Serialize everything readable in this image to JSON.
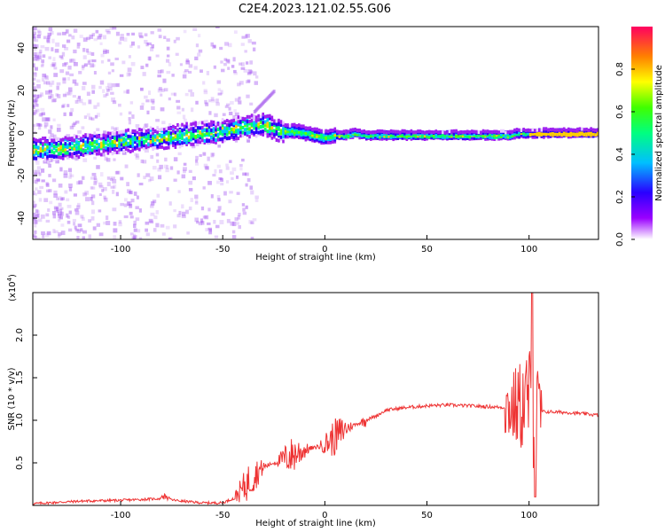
{
  "title": "C2E4.2023.121.02.55.G06",
  "chart_data": [
    {
      "type": "heatmap",
      "xlabel": "Height of straight line (km)",
      "ylabel": "Frequency (Hz)",
      "xlim": [
        -143,
        134
      ],
      "ylim": [
        -50,
        50
      ],
      "x_ticks": [
        -100,
        -50,
        0,
        50,
        100
      ],
      "y_ticks": [
        -40,
        -20,
        0,
        20,
        40
      ],
      "grid": false,
      "colorbar": {
        "label": "Normalized spectral amplitude",
        "range": [
          0.0,
          1.0
        ],
        "ticks": [
          0.0,
          0.2,
          0.4,
          0.6,
          0.8
        ],
        "colormap": "rainbow (purple to red)"
      },
      "ridge": {
        "description": "dominant frequency vs height",
        "x": [
          -143,
          -130,
          -120,
          -110,
          -100,
          -90,
          -80,
          -70,
          -60,
          -50,
          -40,
          -30,
          -25,
          -20,
          -15,
          -10,
          -5,
          0,
          5,
          10,
          15,
          20,
          30,
          40,
          50,
          60,
          70,
          80,
          90,
          95,
          100,
          110,
          120,
          134
        ],
        "y": [
          -8,
          -7,
          -6,
          -5,
          -4,
          -3,
          -2,
          -1,
          0,
          1,
          3,
          4,
          2,
          1,
          1,
          0,
          -1,
          -2,
          -1,
          -1,
          0,
          -1,
          -1,
          -1,
          -1,
          -1,
          -1,
          -1,
          -1,
          0,
          0,
          0,
          0,
          0
        ]
      }
    },
    {
      "type": "line",
      "xlabel": "Height of straight line (km)",
      "ylabel": "SNR (10 * v/v)",
      "y_multiplier": "(x10^4)",
      "multiplier_base": "(x10",
      "multiplier_exp": "4",
      "xlim": [
        -143,
        134
      ],
      "ylim": [
        0,
        2.5
      ],
      "x_ticks": [
        -100,
        -50,
        0,
        50,
        100
      ],
      "y_ticks": [
        0.5,
        1.0,
        1.5,
        2.0
      ],
      "y_tick_labels": [
        "0.5",
        "1.0",
        "1.5",
        "2.0"
      ],
      "line_color": "#ee3333",
      "series": [
        {
          "x": [
            -143,
            -120,
            -100,
            -80,
            -70,
            -60,
            -50,
            -45,
            -40,
            -35,
            -30,
            -25,
            -20,
            -15,
            -10,
            -5,
            0,
            5,
            10,
            15,
            20,
            25,
            30,
            40,
            50,
            60,
            70,
            80,
            88,
            92,
            95,
            98,
            100,
            102,
            104,
            106,
            110,
            120,
            134
          ],
          "y": [
            0.02,
            0.05,
            0.06,
            0.08,
            0.05,
            0.03,
            0.03,
            0.08,
            0.2,
            0.35,
            0.45,
            0.5,
            0.55,
            0.6,
            0.65,
            0.68,
            0.72,
            0.8,
            0.9,
            0.95,
            1.0,
            1.05,
            1.12,
            1.15,
            1.17,
            1.18,
            1.17,
            1.16,
            1.15,
            1.15,
            1.16,
            1.2,
            1.3,
            0.9,
            1.12,
            1.1,
            1.1,
            1.09,
            1.06
          ]
        }
      ]
    }
  ]
}
